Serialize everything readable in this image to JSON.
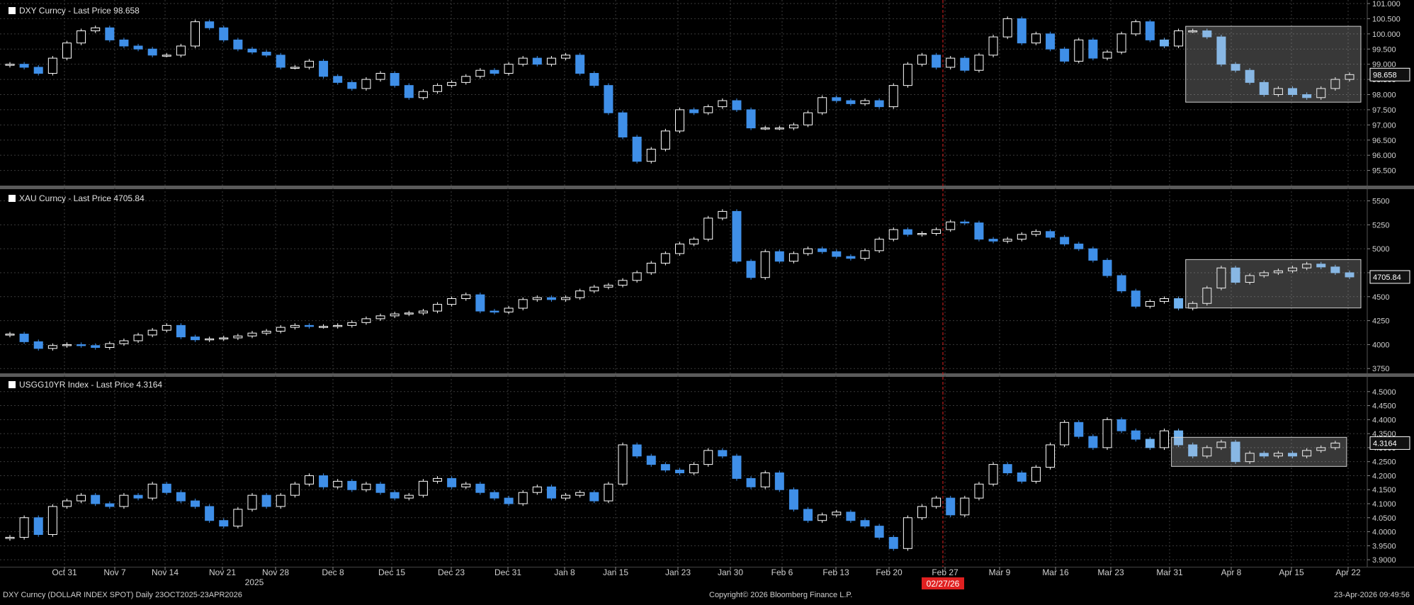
{
  "footer": {
    "left": "DXY Curncy (DOLLAR INDEX SPOT) Daily 23OCT2025-23APR2026",
    "center": "Copyright© 2026 Bloomberg Finance L.P.",
    "right": "23-Apr-2026 09:49:56"
  },
  "colors": {
    "up": "#ffffff",
    "down": "#3f8fe8",
    "recent_down": "#6fb1ef",
    "marker": "#e02020"
  },
  "x_axis": {
    "year_label": "2025",
    "ticks": [
      "Oct 31",
      "Nov 7",
      "Nov 14",
      "Nov 21",
      "Nov 28",
      "Dec 8",
      "Dec 15",
      "Dec 23",
      "Dec 31",
      "Jan 8",
      "Jan 15",
      "Jan 23",
      "Jan 30",
      "Feb 6",
      "Feb 13",
      "Feb 20",
      "Feb 27",
      "Mar 9",
      "Mar 16",
      "Mar 23",
      "Mar 31",
      "Apr 8",
      "Apr 15",
      "Apr 22"
    ],
    "marker_date": "02/27/26"
  },
  "chart_data": [
    {
      "type": "candlestick",
      "legend": "DXY Curncy - Last Price 98.658",
      "last_price_label": "98.658",
      "ylim": [
        95.0,
        101.0
      ],
      "yticks": [
        "101.000",
        "100.500",
        "100.000",
        "99.500",
        "99.000",
        "98.500",
        "98.000",
        "97.500",
        "97.000",
        "96.500",
        "96.000",
        "95.500"
      ],
      "close": [
        99.0,
        98.9,
        98.7,
        99.2,
        99.7,
        100.1,
        100.2,
        99.8,
        99.6,
        99.5,
        99.3,
        99.3,
        99.6,
        100.4,
        100.2,
        99.8,
        99.5,
        99.4,
        99.3,
        98.9,
        98.9,
        99.1,
        98.6,
        98.4,
        98.2,
        98.5,
        98.7,
        98.3,
        97.9,
        98.1,
        98.3,
        98.4,
        98.6,
        98.8,
        98.7,
        99.0,
        99.2,
        99.0,
        99.2,
        99.3,
        98.7,
        98.3,
        97.4,
        96.6,
        95.8,
        96.2,
        96.8,
        97.5,
        97.4,
        97.6,
        97.8,
        97.5,
        96.9,
        96.9,
        96.9,
        97.0,
        97.4,
        97.9,
        97.8,
        97.7,
        97.8,
        97.6,
        98.3,
        99.0,
        99.3,
        98.9,
        99.2,
        98.8,
        99.3,
        99.9,
        100.5,
        99.7,
        100.0,
        99.5,
        99.1,
        99.8,
        99.2,
        99.4,
        100.0,
        100.4,
        99.8,
        99.6,
        100.1,
        100.1,
        99.9,
        99.0,
        98.8,
        98.4,
        98.0,
        98.2,
        98.0,
        97.9,
        98.2,
        98.5,
        98.658
      ],
      "note": "daily closes, Oct 24 2025 - Apr 23 2026"
    },
    {
      "type": "candlestick",
      "legend": "XAU Curncy - Last Price 4705.84",
      "last_price_label": "4705.84",
      "ylim": [
        3700,
        5600
      ],
      "yticks": [
        "5500",
        "5250",
        "5000",
        "4750",
        "4500",
        "4250",
        "4000",
        "3750"
      ],
      "close": [
        4110,
        4030,
        3960,
        3990,
        4000,
        3990,
        3970,
        4010,
        4040,
        4100,
        4150,
        4200,
        4080,
        4050,
        4060,
        4070,
        4090,
        4120,
        4140,
        4180,
        4200,
        4190,
        4190,
        4200,
        4230,
        4270,
        4300,
        4320,
        4330,
        4350,
        4420,
        4480,
        4520,
        4350,
        4340,
        4380,
        4470,
        4490,
        4470,
        4490,
        4560,
        4600,
        4620,
        4670,
        4750,
        4850,
        4950,
        5050,
        5100,
        5320,
        5390,
        4870,
        4700,
        4970,
        4870,
        4950,
        5000,
        4970,
        4920,
        4900,
        4980,
        5100,
        5200,
        5150,
        5160,
        5200,
        5280,
        5270,
        5100,
        5080,
        5100,
        5150,
        5180,
        5120,
        5050,
        5000,
        4880,
        4720,
        4560,
        4400,
        4450,
        4480,
        4380,
        4430,
        4590,
        4800,
        4650,
        4720,
        4750,
        4770,
        4800,
        4840,
        4810,
        4750,
        4705.84
      ],
      "note": "daily closes, Oct 24 2025 - Apr 23 2026"
    },
    {
      "type": "candlestick",
      "legend": "USGG10YR Index - Last Price 4.3164",
      "last_price_label": "4.3164",
      "ylim": [
        3.875,
        4.55
      ],
      "yticks": [
        "4.5000",
        "4.4500",
        "4.4000",
        "4.3500",
        "4.3000",
        "4.2500",
        "4.2000",
        "4.1500",
        "4.1000",
        "4.0500",
        "4.0000",
        "3.9500",
        "3.9000"
      ],
      "close": [
        3.98,
        4.05,
        3.99,
        4.09,
        4.11,
        4.13,
        4.1,
        4.09,
        4.13,
        4.12,
        4.17,
        4.14,
        4.11,
        4.09,
        4.04,
        4.02,
        4.08,
        4.13,
        4.09,
        4.13,
        4.17,
        4.2,
        4.16,
        4.18,
        4.15,
        4.17,
        4.14,
        4.12,
        4.13,
        4.18,
        4.19,
        4.16,
        4.17,
        4.14,
        4.12,
        4.1,
        4.14,
        4.16,
        4.12,
        4.13,
        4.14,
        4.11,
        4.17,
        4.31,
        4.27,
        4.24,
        4.22,
        4.21,
        4.24,
        4.29,
        4.27,
        4.19,
        4.16,
        4.21,
        4.15,
        4.08,
        4.04,
        4.06,
        4.07,
        4.04,
        4.02,
        3.98,
        3.94,
        4.05,
        4.09,
        4.12,
        4.06,
        4.12,
        4.17,
        4.24,
        4.21,
        4.18,
        4.23,
        4.31,
        4.39,
        4.34,
        4.3,
        4.4,
        4.36,
        4.33,
        4.3,
        4.36,
        4.31,
        4.27,
        4.3,
        4.32,
        4.25,
        4.28,
        4.27,
        4.28,
        4.27,
        4.29,
        4.3,
        4.3164
      ],
      "note": "daily closes, Oct 24 2025 - Apr 23 2026"
    }
  ]
}
